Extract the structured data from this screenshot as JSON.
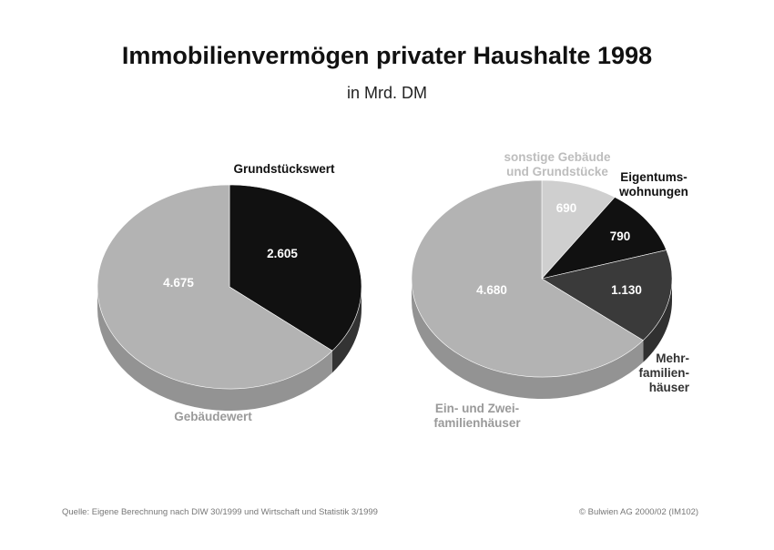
{
  "header": {
    "title": "Immobilienvermögen privater Haushalte 1998",
    "subtitle": "in Mrd. DM"
  },
  "footer": {
    "source": "Quelle: Eigene Berechnung nach DIW 30/1999 und Wirtschaft und Statistik 3/1999",
    "copyright": "© Bulwien AG 2000/02 (IM102)"
  },
  "chart_data": [
    {
      "type": "pie",
      "unit": "Mrd. DM",
      "slices": [
        {
          "label": "Grundstückswert",
          "value": 2605,
          "value_label": "2.605",
          "color": "#111111"
        },
        {
          "label": "Gebäudewert",
          "value": 4675,
          "value_label": "4.675",
          "color": "#b3b3b3"
        }
      ]
    },
    {
      "type": "pie",
      "unit": "Mrd. DM",
      "slices": [
        {
          "label": "sonstige Gebäude und Grundstücke",
          "lines": [
            "sonstige Gebäude",
            "und Grundstücke"
          ],
          "value": 690,
          "value_label": "690",
          "color": "#cfcfcf"
        },
        {
          "label": "Eigentumswohnungen",
          "lines": [
            "Eigentums-",
            "wohnungen"
          ],
          "value": 790,
          "value_label": "790",
          "color": "#111111"
        },
        {
          "label": "Mehrfamilienhäuser",
          "lines": [
            "Mehr-",
            "familien-",
            "häuser"
          ],
          "value": 1130,
          "value_label": "1.130",
          "color": "#3a3a3a"
        },
        {
          "label": "Ein- und Zweifamilienhäuser",
          "lines": [
            "Ein- und Zwei-",
            "familienhäuser"
          ],
          "value": 4680,
          "value_label": "4.680",
          "color": "#b3b3b3"
        }
      ]
    }
  ]
}
